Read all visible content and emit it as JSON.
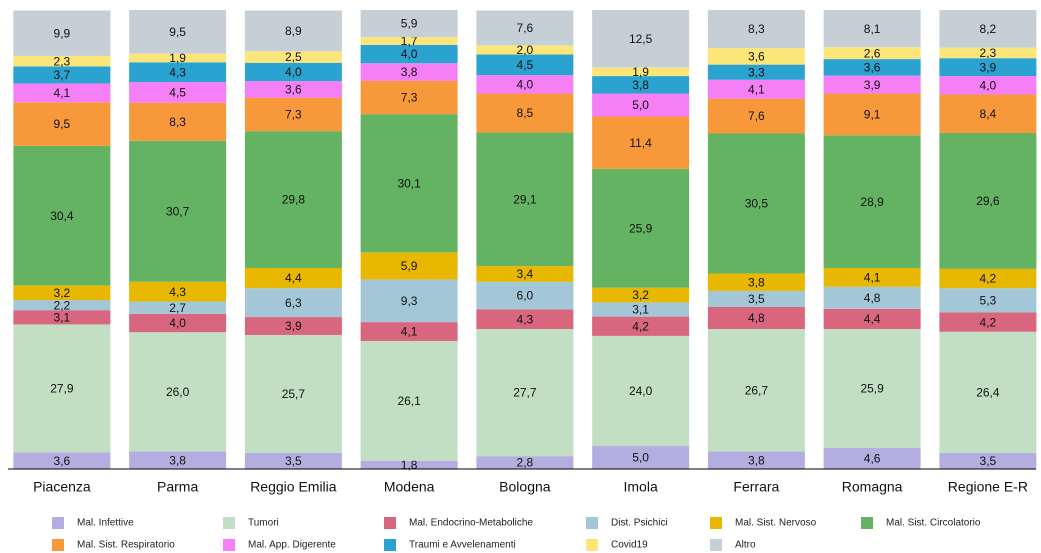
{
  "chart_data": {
    "type": "stacked_bar",
    "categories": [
      "Piacenza",
      "Parma",
      "Reggio Emilia",
      "Modena",
      "Bologna",
      "Imola",
      "Ferrara",
      "Romagna",
      "Regione E-R"
    ],
    "ylim": [
      0,
      100
    ],
    "series": [
      {
        "name": "Mal. Infettive",
        "color": "#b4aee0",
        "values": [
          3.6,
          3.8,
          3.5,
          1.8,
          2.8,
          5.0,
          3.8,
          4.6,
          3.5
        ],
        "value_labels": [
          "3,6",
          "3,8",
          "3,5",
          "1,8",
          "2,8",
          "5,0",
          "3,8",
          "4,6",
          "3,5"
        ]
      },
      {
        "name": "Tumori",
        "color": "#c2dfc4",
        "values": [
          27.9,
          26.0,
          25.7,
          26.1,
          27.7,
          24.0,
          26.7,
          25.9,
          26.4
        ],
        "value_labels": [
          "27,9",
          "26,0",
          "25,7",
          "26,1",
          "27,7",
          "24,0",
          "26,7",
          "25,9",
          "26,4"
        ]
      },
      {
        "name": "Mal. Endocrino-Metaboliche",
        "color": "#d9667f",
        "values": [
          3.1,
          4.0,
          3.9,
          4.1,
          4.3,
          4.2,
          4.8,
          4.4,
          4.2
        ],
        "value_labels": [
          "3,1",
          "4,0",
          "3,9",
          "4,1",
          "4,3",
          "4,2",
          "4,8",
          "4,4",
          "4,2"
        ]
      },
      {
        "name": "Dist. Psichici",
        "color": "#a3c7d6",
        "values": [
          2.2,
          2.7,
          6.3,
          9.3,
          6.0,
          3.1,
          3.5,
          4.8,
          5.3
        ],
        "value_labels": [
          "2,2",
          "2,7",
          "6,3",
          "9,3",
          "6,0",
          "3,1",
          "3,5",
          "4,8",
          "5,3"
        ]
      },
      {
        "name": "Mal. Sist. Nervoso",
        "color": "#e8b800",
        "values": [
          3.2,
          4.3,
          4.4,
          5.9,
          3.4,
          3.2,
          3.8,
          4.1,
          4.2
        ],
        "value_labels": [
          "3,2",
          "4,3",
          "4,4",
          "5,9",
          "3,4",
          "3,2",
          "3,8",
          "4,1",
          "4,2"
        ]
      },
      {
        "name": "Mal. Sist. Circolatorio",
        "color": "#63b362",
        "values": [
          30.4,
          30.7,
          29.8,
          30.1,
          29.1,
          25.9,
          30.5,
          28.9,
          29.6
        ],
        "value_labels": [
          "30,4",
          "30,7",
          "29,8",
          "30,1",
          "29,1",
          "25,9",
          "30,5",
          "28,9",
          "29,6"
        ]
      },
      {
        "name": "Mal. Sist. Respiratorio",
        "color": "#f7993a",
        "values": [
          9.5,
          8.3,
          7.3,
          7.3,
          8.5,
          11.4,
          7.6,
          9.1,
          8.4
        ],
        "value_labels": [
          "9,5",
          "8,3",
          "7,3",
          "7,3",
          "8,5",
          "11,4",
          "7,6",
          "9,1",
          "8,4"
        ]
      },
      {
        "name": "Mal. App. Digerente",
        "color": "#f57ff5",
        "values": [
          4.1,
          4.5,
          3.6,
          3.8,
          4.0,
          5.0,
          4.1,
          3.9,
          4.0
        ],
        "value_labels": [
          "4,1",
          "4,5",
          "3,6",
          "3,8",
          "4,0",
          "5,0",
          "4,1",
          "3,9",
          "4,0"
        ]
      },
      {
        "name": "Traumi e Avvelenamenti",
        "color": "#2ba3d0",
        "values": [
          3.7,
          4.3,
          4.0,
          4.0,
          4.5,
          3.8,
          3.3,
          3.6,
          3.9
        ],
        "value_labels": [
          "3,7",
          "4,3",
          "4,0",
          "4,0",
          "4,5",
          "3,8",
          "3,3",
          "3,6",
          "3,9"
        ]
      },
      {
        "name": "Covid19",
        "color": "#fce67a",
        "values": [
          2.3,
          1.9,
          2.5,
          1.7,
          2.0,
          1.9,
          3.6,
          2.6,
          2.3
        ],
        "value_labels": [
          "2,3",
          "1,9",
          "2,5",
          "1,7",
          "2,0",
          "1,9",
          "3,6",
          "2,6",
          "2,3"
        ]
      },
      {
        "name": "Altro",
        "color": "#c7cfd6",
        "values": [
          9.9,
          9.5,
          8.9,
          5.9,
          7.6,
          12.5,
          8.3,
          8.1,
          8.2
        ],
        "value_labels": [
          "9,9",
          "9,5",
          "8,9",
          "5,9",
          "7,6",
          "12,5",
          "8,3",
          "8,1",
          "8,2"
        ]
      }
    ]
  }
}
